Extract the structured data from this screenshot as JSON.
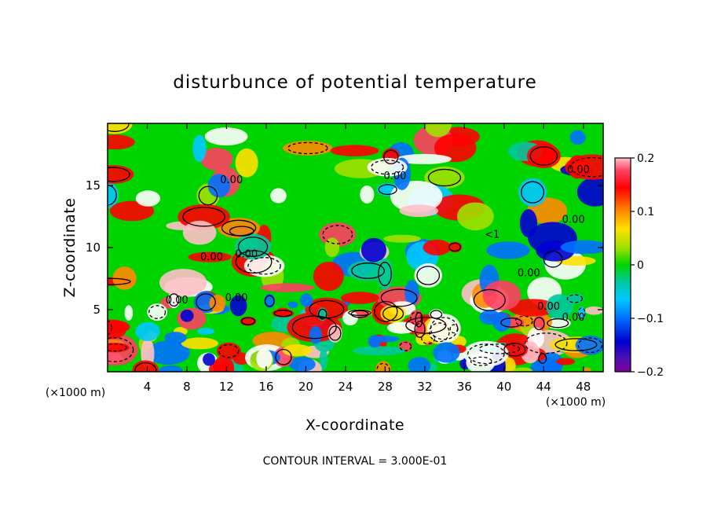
{
  "chart_data": {
    "type": "heatmap",
    "title": "disturbunce of potential temperature",
    "xlabel": "X-coordinate",
    "ylabel": "Z-coordinate",
    "x_unit": "(×1000 m)",
    "z_unit": "(×1000 m)",
    "xlim": [
      0,
      50
    ],
    "ylim": [
      0,
      20
    ],
    "x_ticks": [
      "4",
      "8",
      "12",
      "16",
      "20",
      "24",
      "28",
      "32",
      "36",
      "40",
      "44",
      "48"
    ],
    "x_tick_values": [
      4,
      8,
      12,
      16,
      20,
      24,
      28,
      32,
      36,
      40,
      44,
      48
    ],
    "y_ticks": [
      "5",
      "10",
      "15"
    ],
    "y_tick_values": [
      5,
      10,
      15
    ],
    "colorbar": {
      "range": [
        -0.2,
        0.2
      ],
      "ticks": [
        "0.2",
        "0.1",
        "0",
        "−0.1",
        "−0.2"
      ],
      "tick_values": [
        0.2,
        0.1,
        0,
        -0.1,
        -0.2
      ]
    },
    "contour_labels": [
      {
        "text": "0.00",
        "x": 12.5,
        "z": 15.2
      },
      {
        "text": "0.00",
        "x": 29.0,
        "z": 15.5
      },
      {
        "text": "0.00",
        "x": 47.5,
        "z": 16.0
      },
      {
        "text": "0.00",
        "x": 47.0,
        "z": 12.0
      },
      {
        "text": "0.00",
        "x": 10.5,
        "z": 9.0
      },
      {
        "text": "0.00",
        "x": 14.0,
        "z": 9.2
      },
      {
        "text": "0.00",
        "x": 42.5,
        "z": 7.7
      },
      {
        "text": "0.00",
        "x": 13.0,
        "z": 5.7
      },
      {
        "text": "0.00",
        "x": 7.0,
        "z": 5.5
      },
      {
        "text": "0.00",
        "x": 44.5,
        "z": 5.0
      },
      {
        "text": "0.00",
        "x": 47.0,
        "z": 4.1
      },
      {
        "text": "<1",
        "x": 38.8,
        "z": 10.8
      }
    ],
    "contour_interval_text": "CONTOUR INTERVAL = 3.000E-01"
  }
}
